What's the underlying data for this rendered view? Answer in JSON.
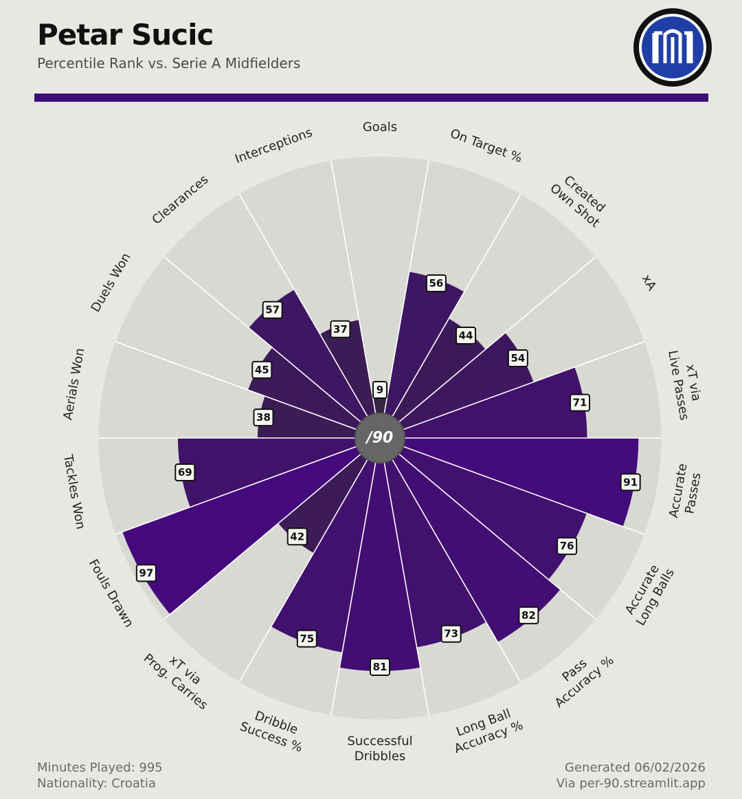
{
  "header": {
    "title": "Petar Sucic",
    "subtitle": "Percentile Rank vs. Serie A Midfielders"
  },
  "colors": {
    "background": "#e8e8e3",
    "accent": "#3f0d7a",
    "slice_background": "#d9d9d4",
    "center_badge": "#666666",
    "center_text_accent": "#5bd0e8"
  },
  "logo": {
    "icon": "inter-milan-crest-icon"
  },
  "center_badge_text": "/90",
  "chart_data": {
    "type": "radar",
    "subtype": "polar-bar",
    "scale": [
      0,
      100
    ],
    "categories": [
      "Goals",
      "On Target %",
      "Created Own Shot",
      "xA",
      "xT via Live Passes",
      "Accurate Passes",
      "Accurate Long Balls",
      "Pass Accuracy %",
      "Long Ball Accuracy %",
      "Successful Dribbles",
      "Dribble Success %",
      "xT via Prog. Carries",
      "Fouls Drawn",
      "Tackles Won",
      "Aerials Won",
      "Duels Won",
      "Clearances",
      "Interceptions"
    ],
    "label_lines": [
      [
        "Goals"
      ],
      [
        "On Target %"
      ],
      [
        "Created",
        "Own Shot"
      ],
      [
        "xA"
      ],
      [
        "xT via",
        "Live Passes"
      ],
      [
        "Accurate",
        "Passes"
      ],
      [
        "Accurate",
        "Long Balls"
      ],
      [
        "Pass",
        "Accuracy %"
      ],
      [
        "Long Ball",
        "Accuracy %"
      ],
      [
        "Successful",
        "Dribbles"
      ],
      [
        "Dribble",
        "Success %"
      ],
      [
        "xT via",
        "Prog. Carries"
      ],
      [
        "Fouls Drawn"
      ],
      [
        "Tackles Won"
      ],
      [
        "Aerials Won"
      ],
      [
        "Duels Won"
      ],
      [
        "Clearances"
      ],
      [
        "Interceptions"
      ]
    ],
    "values": [
      9,
      56,
      44,
      54,
      71,
      91,
      76,
      82,
      73,
      81,
      75,
      42,
      97,
      69,
      38,
      45,
      57,
      37
    ]
  },
  "footer": {
    "minutes": "Minutes Played: 995",
    "nationality": "Nationality: Croatia",
    "generated": "Generated 06/02/2026",
    "source": "Via per-90.streamlit.app"
  }
}
